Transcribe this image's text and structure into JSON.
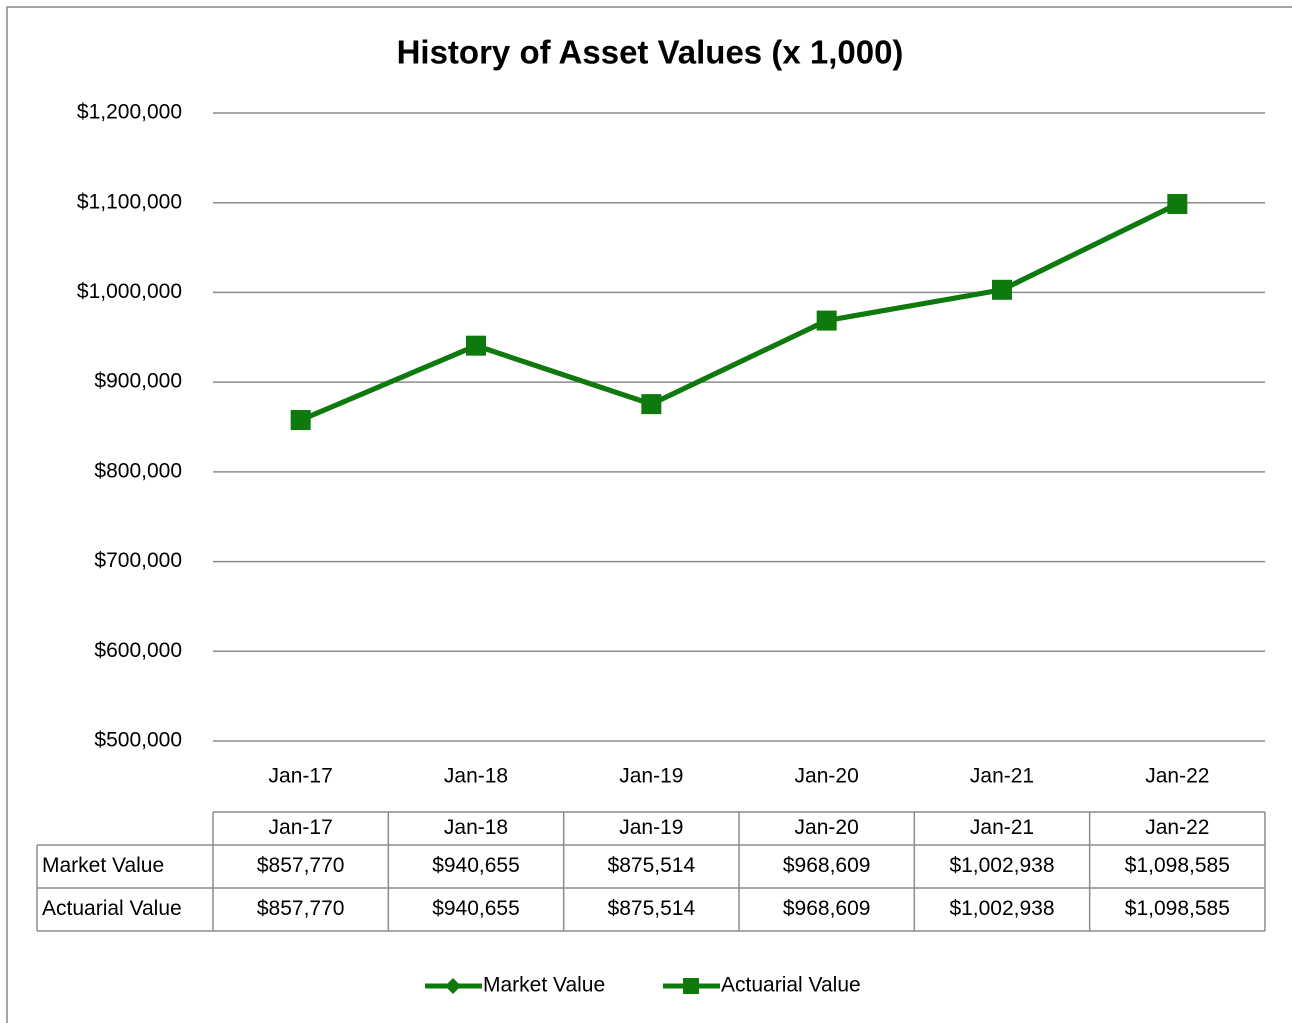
{
  "chart_data": {
    "type": "line",
    "title": "History of Asset Values  (x 1,000)",
    "categories": [
      "Jan-17",
      "Jan-18",
      "Jan-19",
      "Jan-20",
      "Jan-21",
      "Jan-22"
    ],
    "series": [
      {
        "name": "Market Value",
        "color": "#0e7a0e",
        "marker": "diamond",
        "values": [
          857770,
          940655,
          875514,
          968609,
          1002938,
          1098585
        ],
        "value_labels": [
          "$857,770",
          "$940,655",
          "$875,514",
          "$968,609",
          "$1,002,938",
          "$1,098,585"
        ]
      },
      {
        "name": "Actuarial Value",
        "color": "#0e7a0e",
        "marker": "square",
        "values": [
          857770,
          940655,
          875514,
          968609,
          1002938,
          1098585
        ],
        "value_labels": [
          "$857,770",
          "$940,655",
          "$875,514",
          "$968,609",
          "$1,002,938",
          "$1,098,585"
        ]
      }
    ],
    "ylim": [
      500000,
      1200000
    ],
    "yticks": [
      {
        "value": 500000,
        "label": "$500,000"
      },
      {
        "value": 600000,
        "label": "$600,000"
      },
      {
        "value": 700000,
        "label": "$700,000"
      },
      {
        "value": 800000,
        "label": "$800,000"
      },
      {
        "value": 900000,
        "label": "$900,000"
      },
      {
        "value": 1000000,
        "label": "$1,000,000"
      },
      {
        "value": 1100000,
        "label": "$1,100,000"
      },
      {
        "value": 1200000,
        "label": "$1,200,000"
      }
    ],
    "grid": true,
    "legend": "bottom",
    "data_table": true
  }
}
